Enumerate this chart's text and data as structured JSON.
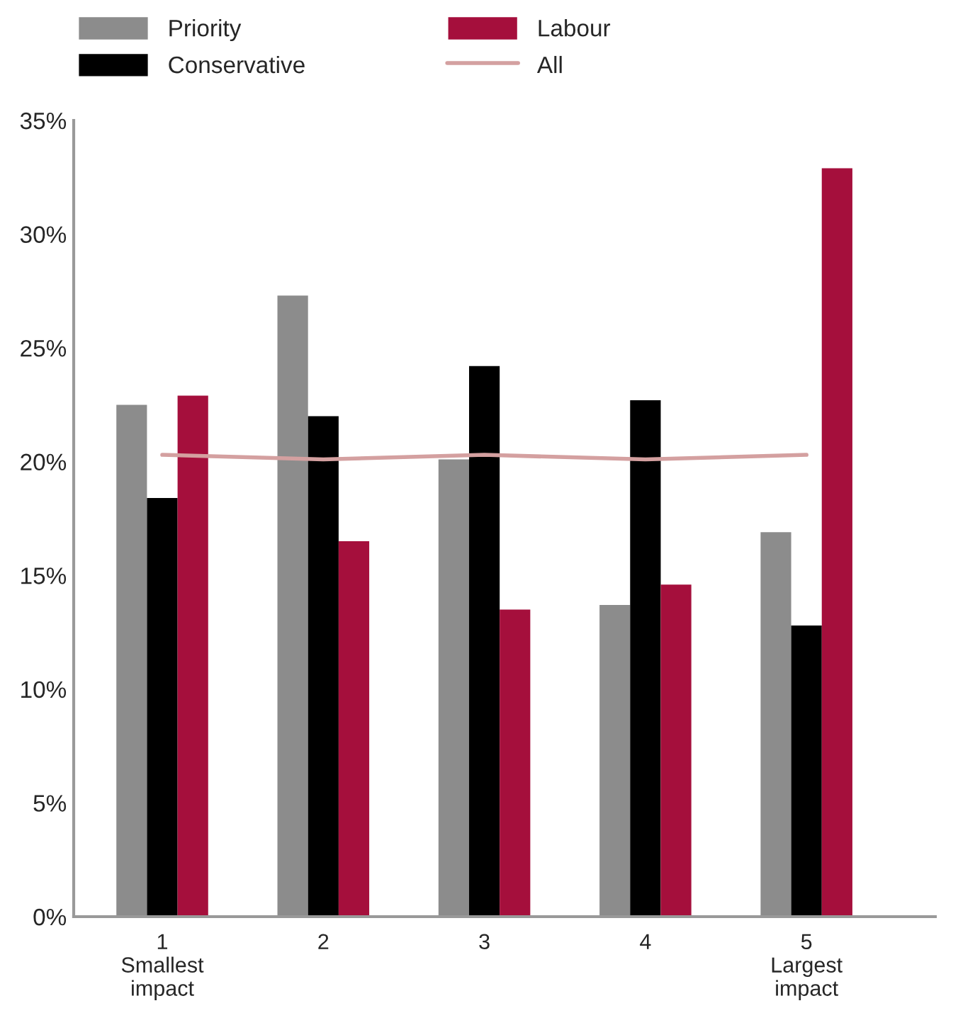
{
  "chart_data": {
    "type": "bar",
    "categories": [
      "1\nSmallest\nimpact",
      "2",
      "3",
      "4",
      "5\nLargest\nimpact"
    ],
    "series": [
      {
        "name": "Priority",
        "color": "#8c8c8c",
        "values": [
          22.5,
          27.3,
          20.1,
          13.7,
          16.9
        ]
      },
      {
        "name": "Conservative",
        "color": "#000000",
        "values": [
          18.4,
          22.0,
          24.2,
          22.7,
          12.8
        ]
      },
      {
        "name": "Labour",
        "color": "#a50f3c",
        "values": [
          22.9,
          16.5,
          13.5,
          14.6,
          32.9
        ]
      },
      {
        "name": "All",
        "type": "line",
        "color": "#d4a0a0",
        "values": [
          20.3,
          20.1,
          20.3,
          20.1,
          20.3
        ]
      }
    ],
    "ylim": [
      0,
      35
    ],
    "yticks": [
      {
        "value": 0,
        "label": "0%"
      },
      {
        "value": 5,
        "label": "5%"
      },
      {
        "value": 10,
        "label": "10%"
      },
      {
        "value": 15,
        "label": "15%"
      },
      {
        "value": 20,
        "label": "20%"
      },
      {
        "value": 25,
        "label": "25%"
      },
      {
        "value": 30,
        "label": "30%"
      },
      {
        "value": 35,
        "label": "35%"
      }
    ],
    "grid": false,
    "legend": "top"
  }
}
